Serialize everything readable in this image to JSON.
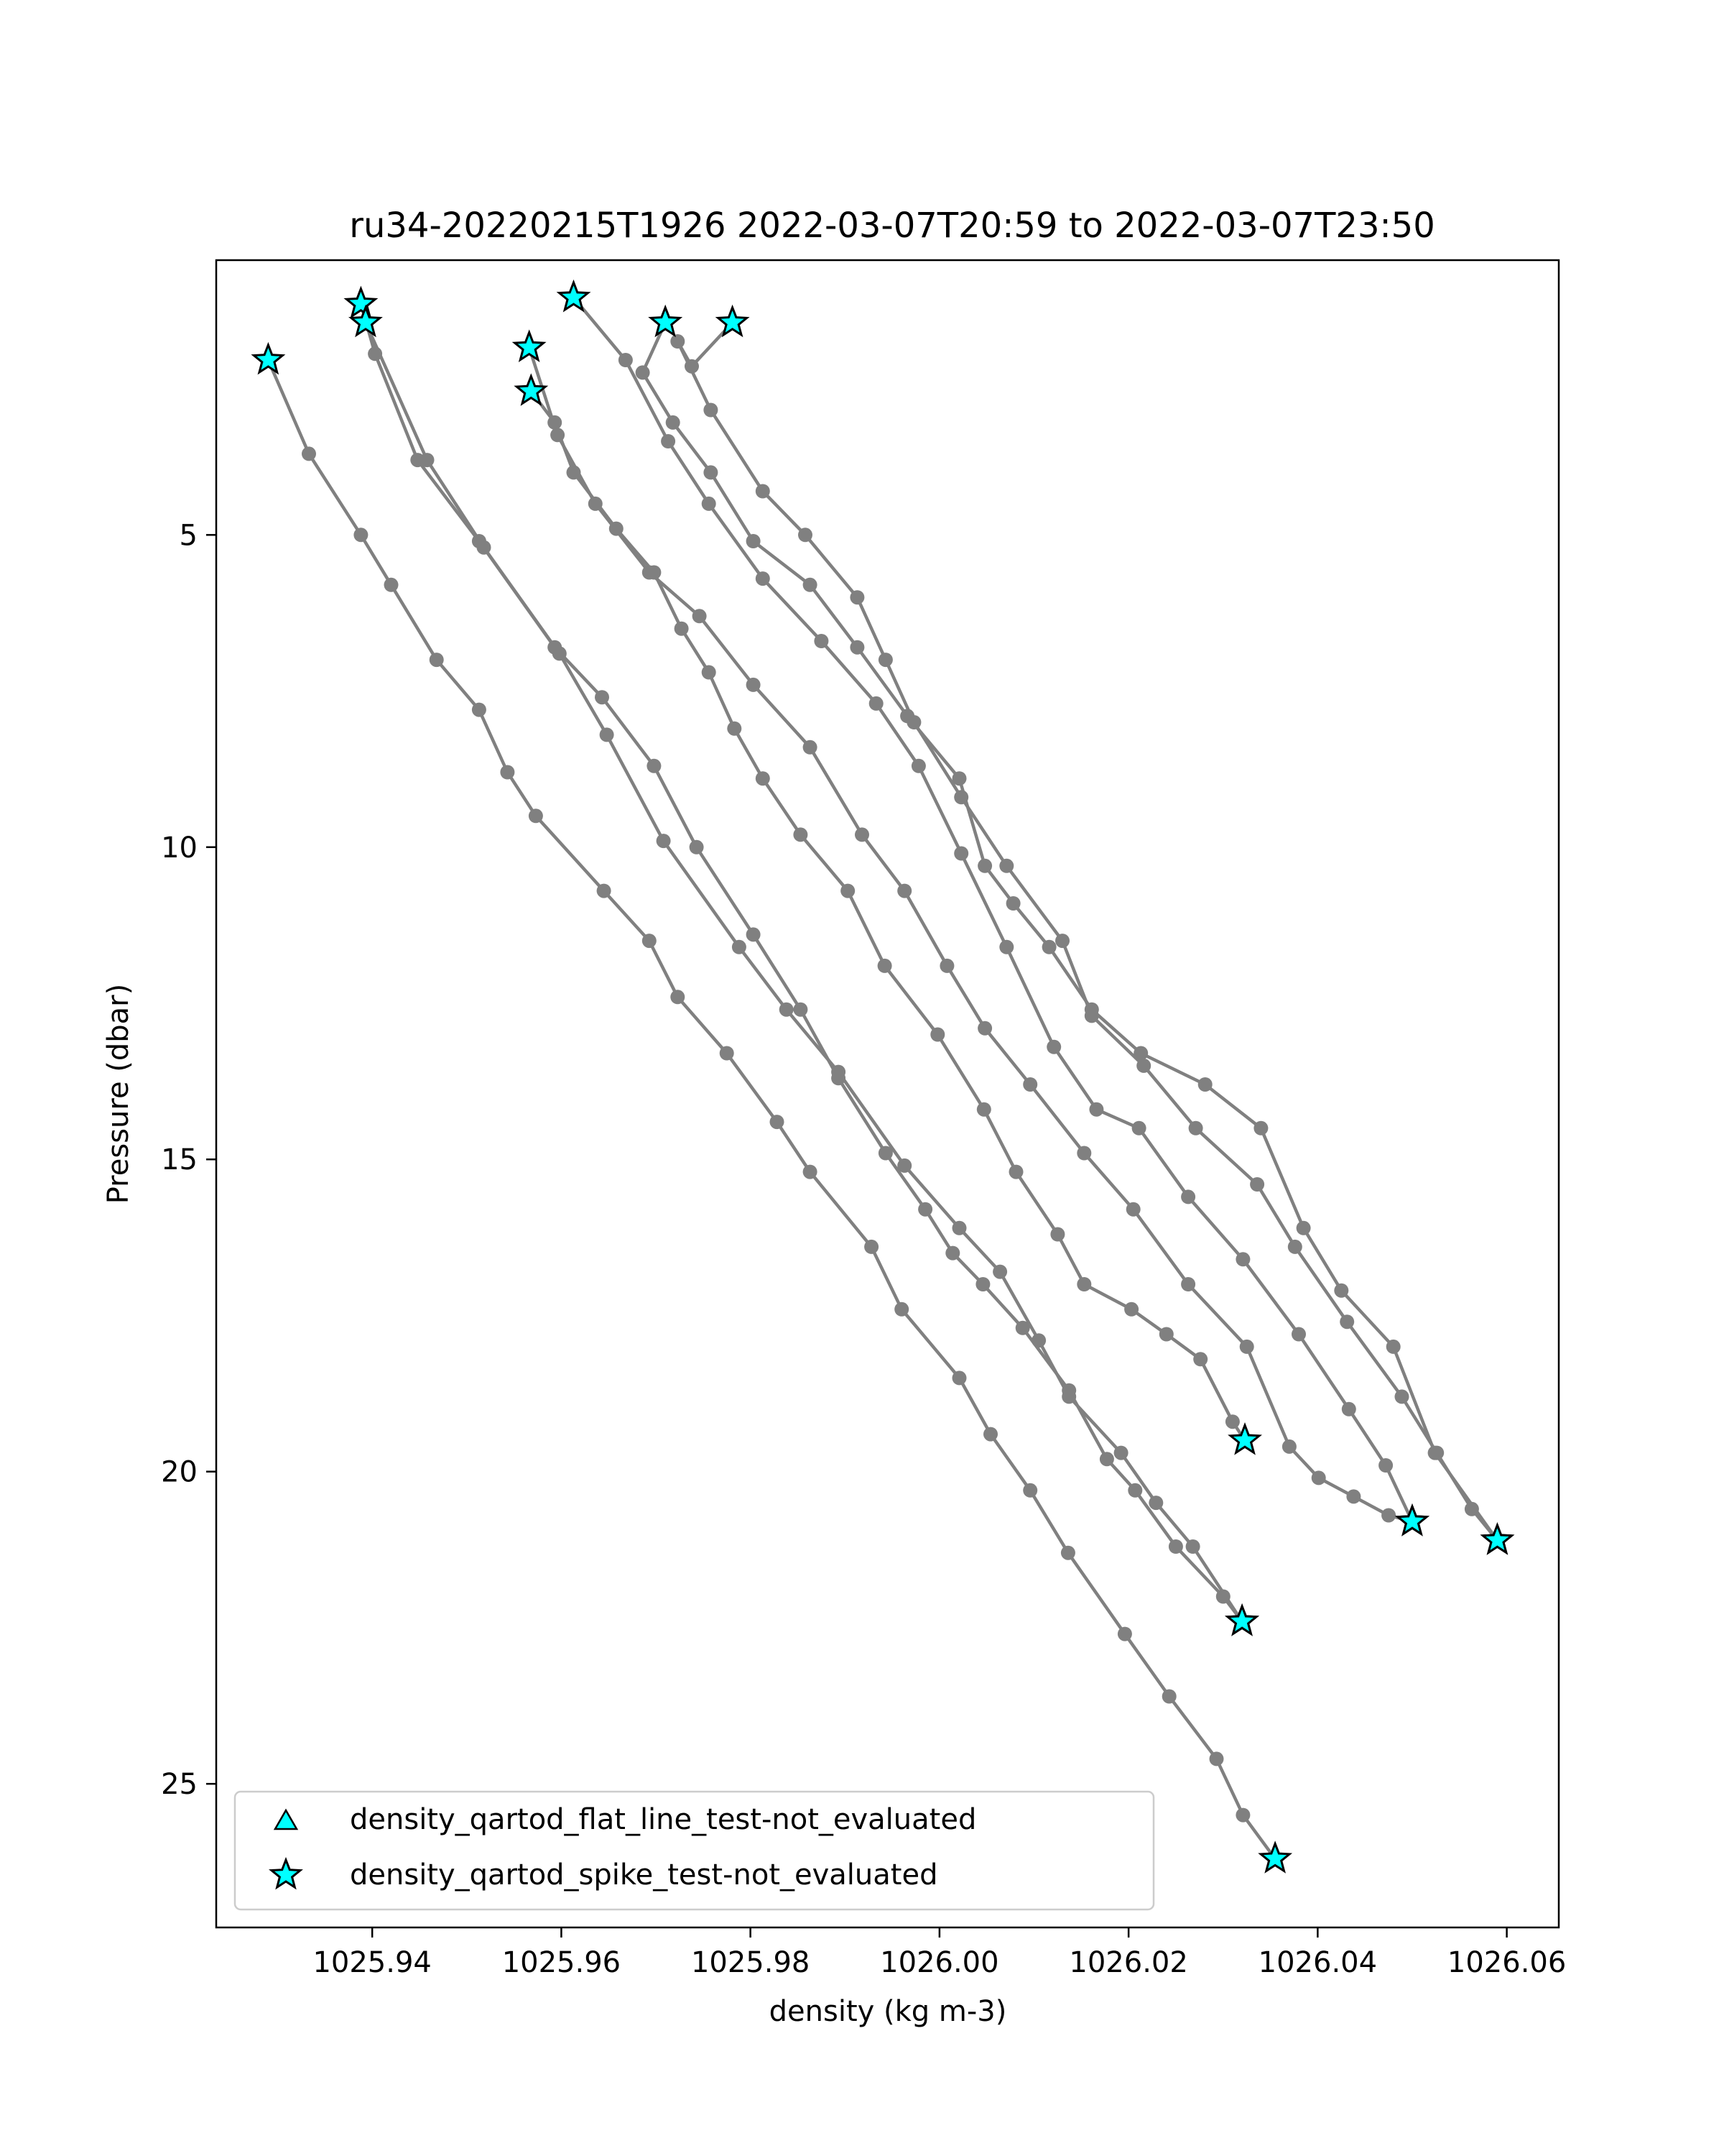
{
  "chart_data": {
    "type": "line",
    "title": "ru34-20220215T1926 2022-03-07T20:59 to 2022-03-07T23:50",
    "xlabel": "density (kg m-3)",
    "ylabel": "Pressure (dbar)",
    "xlim": [
      1025.9235,
      1026.0655
    ],
    "ylim": [
      27.3,
      0.6
    ],
    "y_inverted": true,
    "xticks": [
      1025.94,
      1025.96,
      1025.98,
      1026.0,
      1026.02,
      1026.04,
      1026.06
    ],
    "xtick_labels": [
      "1025.94",
      "1025.96",
      "1025.98",
      "1026.00",
      "1026.02",
      "1026.04",
      "1026.06"
    ],
    "yticks": [
      5,
      10,
      15,
      20,
      25
    ],
    "ytick_labels": [
      "5",
      "10",
      "15",
      "20",
      "25"
    ],
    "grid": false,
    "line_color": "#808080",
    "marker_color": "#808080",
    "flag_color": "#00ffff",
    "legend": {
      "placement": "lower-left",
      "entries": [
        {
          "label": "density_qartod_flat_line_test-not_evaluated",
          "marker": "triangle"
        },
        {
          "label": "density_qartod_spike_test-not_evaluated",
          "marker": "star"
        }
      ]
    },
    "series": [
      {
        "x": [
          1025.929,
          1025.9333,
          1025.9388,
          1025.942,
          1025.9468,
          1025.9513,
          1025.9543,
          1025.9573,
          1025.9645,
          1025.9693,
          1025.9723,
          1025.9775,
          1025.9828,
          1025.9863,
          1025.9928,
          1025.996,
          1026.0021,
          1026.0054,
          1026.0096,
          1026.0136,
          1026.0196,
          1026.0243,
          1026.0293,
          1026.0321,
          1026.0355
        ],
        "y": [
          2.2,
          3.7,
          5.0,
          5.8,
          7.0,
          7.8,
          8.8,
          9.5,
          10.7,
          11.5,
          12.4,
          13.3,
          14.4,
          15.2,
          16.4,
          17.4,
          18.5,
          19.4,
          20.3,
          21.3,
          22.6,
          23.6,
          24.6,
          25.5,
          26.2
        ]
      },
      {
        "x": [
          1025.9388,
          1025.9403,
          1025.9448,
          1025.9513,
          1025.9593,
          1025.9643,
          1025.9698,
          1025.9743,
          1025.9803,
          1025.9853,
          1025.9893,
          1025.9943,
          1025.9985,
          1026.0014,
          1026.0046,
          1026.0088,
          1026.0137,
          1026.0177,
          1026.0207,
          1026.025,
          1026.03,
          1026.032
        ],
        "y": [
          1.3,
          2.1,
          3.8,
          5.1,
          6.8,
          7.6,
          8.7,
          10.0,
          11.4,
          12.6,
          13.7,
          14.9,
          15.8,
          16.5,
          17.0,
          17.7,
          18.7,
          19.8,
          20.3,
          21.2,
          22.0,
          22.4
        ]
      },
      {
        "x": [
          1025.9393,
          1025.9458,
          1025.9518,
          1025.9598,
          1025.9648,
          1025.9708,
          1025.9788,
          1025.9838,
          1025.9893,
          1025.9963,
          1026.0021,
          1026.0064,
          1026.0105,
          1026.0137,
          1026.0192,
          1026.0229,
          1026.0268,
          1026.032
        ],
        "y": [
          1.6,
          3.8,
          5.2,
          6.9,
          8.2,
          9.9,
          11.6,
          12.6,
          13.6,
          15.1,
          16.1,
          16.8,
          17.9,
          18.8,
          19.7,
          20.5,
          21.2,
          22.4
        ]
      },
      {
        "x": [
          1025.9568,
          1025.9593,
          1025.9613,
          1025.9658,
          1025.9698,
          1025.9727,
          1025.9756,
          1025.9783,
          1025.9813,
          1025.9853,
          1025.9903,
          1025.9942,
          1025.9998,
          1026.0047,
          1026.0081,
          1026.0125,
          1026.0153,
          1026.0203,
          1026.024,
          1026.0276,
          1026.031,
          1026.0323
        ],
        "y": [
          2.7,
          3.2,
          4.0,
          4.9,
          5.6,
          6.5,
          7.2,
          8.1,
          8.9,
          9.8,
          10.7,
          11.9,
          13.0,
          14.2,
          15.2,
          16.2,
          17.0,
          17.4,
          17.8,
          18.2,
          19.2,
          19.5
        ]
      },
      {
        "x": [
          1025.9613,
          1025.9668,
          1025.9713,
          1025.9756,
          1025.9813,
          1025.9875,
          1025.9933,
          1025.9978,
          1026.0023,
          1026.0071,
          1026.0121,
          1026.0166,
          1026.0211,
          1026.0263,
          1026.0321,
          1026.038,
          1026.0433,
          1026.0472,
          1026.05
        ],
        "y": [
          1.2,
          2.2,
          3.5,
          4.5,
          5.7,
          6.7,
          7.7,
          8.7,
          10.1,
          11.6,
          13.2,
          14.2,
          14.5,
          15.6,
          16.6,
          17.8,
          19.0,
          19.9,
          20.8
        ]
      },
      {
        "x": [
          1025.9566,
          1025.9596,
          1025.9636,
          1025.9693,
          1025.9746,
          1025.9803,
          1025.9863,
          1025.9918,
          1025.9963,
          1026.0008,
          1026.0048,
          1026.0096,
          1026.0153,
          1026.0205,
          1026.0263,
          1026.0325,
          1026.037,
          1026.0401,
          1026.0438,
          1026.0475,
          1026.05
        ],
        "y": [
          2.0,
          3.4,
          4.5,
          5.6,
          6.3,
          7.4,
          8.4,
          9.8,
          10.7,
          11.9,
          12.9,
          13.8,
          14.9,
          15.8,
          17.0,
          18.0,
          19.6,
          20.1,
          20.4,
          20.7,
          20.8
        ]
      },
      {
        "x": [
          1025.971,
          1025.9686,
          1025.9718,
          1025.9758,
          1025.9803,
          1025.9863,
          1025.9913,
          1025.9966,
          1026.0021,
          1026.0048,
          1026.0078,
          1026.0116,
          1026.0161,
          1026.0213,
          1026.0281,
          1026.034,
          1026.0385,
          1026.0425,
          1026.048,
          1026.0524,
          1026.059
        ],
        "y": [
          1.6,
          2.4,
          3.2,
          4.0,
          5.1,
          5.8,
          6.8,
          7.9,
          8.9,
          10.3,
          10.9,
          11.6,
          12.6,
          13.3,
          13.8,
          14.5,
          16.1,
          17.1,
          18.0,
          19.7,
          21.1
        ]
      },
      {
        "x": [
          1025.9781,
          1025.9738,
          1025.9723,
          1025.9758,
          1025.9813,
          1025.9858,
          1025.9913,
          1025.9943,
          1025.9973,
          1026.0023,
          1026.0071,
          1026.013,
          1026.0161,
          1026.0216,
          1026.0271,
          1026.0336,
          1026.0376,
          1026.0431,
          1026.0489,
          1026.0526,
          1026.0563,
          1026.059
        ],
        "y": [
          1.6,
          2.3,
          1.9,
          3.0,
          4.3,
          5.0,
          6.0,
          7.0,
          8.0,
          9.2,
          10.3,
          11.5,
          12.7,
          13.5,
          14.5,
          15.4,
          16.4,
          17.6,
          18.8,
          19.7,
          20.6,
          21.1
        ]
      }
    ]
  }
}
